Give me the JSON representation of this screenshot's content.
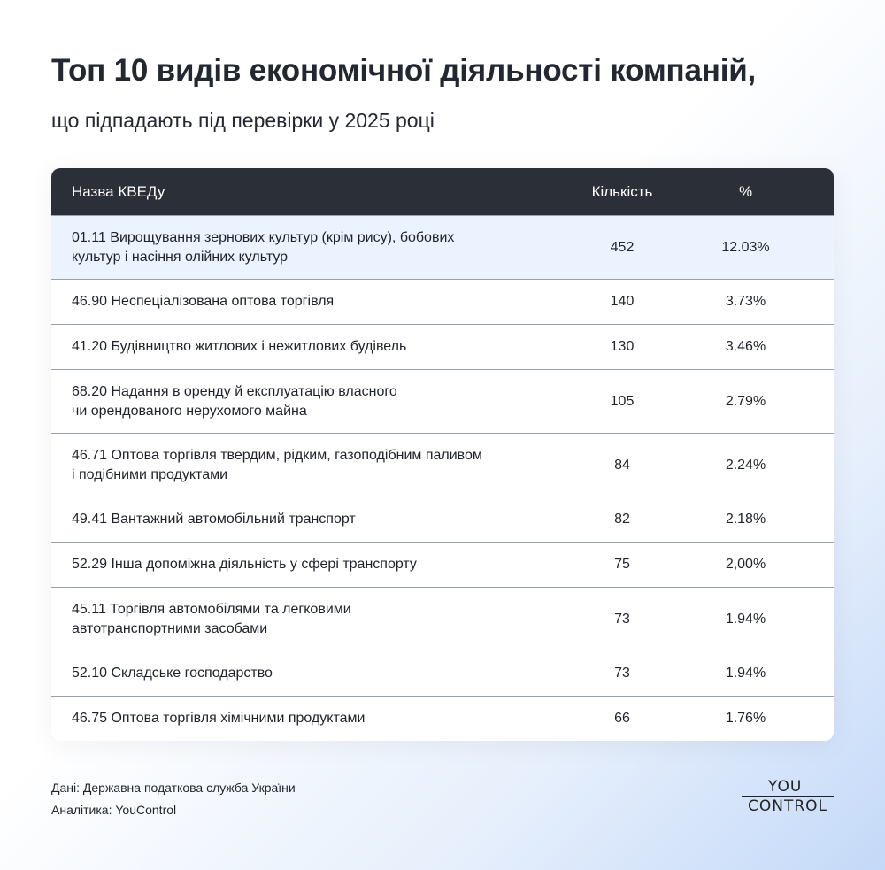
{
  "title": "Топ 10 видів економічної діяльності компаній,",
  "subtitle": "що підпадають під перевірки у 2025 році",
  "table": {
    "headers": [
      "Назва КВЕДу",
      "Кількість",
      "%"
    ],
    "rows": [
      {
        "name": "01.11 Вирощування зернових культур (крім рису), бобових культур і насіння олійних культур",
        "count": "452",
        "pct": "12.03%"
      },
      {
        "name": "46.90 Неспеціалізована оптова торгівля",
        "count": "140",
        "pct": "3.73%"
      },
      {
        "name": "41.20 Будівництво житлових і нежитлових будівель",
        "count": "130",
        "pct": "3.46%"
      },
      {
        "name": "68.20 Надання в оренду й експлуатацію власного чи орендованого нерухомого майна",
        "count": "105",
        "pct": "2.79%"
      },
      {
        "name": "46.71 Оптова торгівля твердим, рідким, газоподібним паливом і подібними продуктами",
        "count": "84",
        "pct": "2.24%"
      },
      {
        "name": "49.41 Вантажний автомобільний транспорт",
        "count": "82",
        "pct": "2.18%"
      },
      {
        "name": "52.29 Інша допоміжна діяльність у сфері транспорту",
        "count": "75",
        "pct": "2,00%"
      },
      {
        "name": "45.11 Торгівля автомобілями та легковими автотранспортними засобами",
        "count": "73",
        "pct": "1.94%"
      },
      {
        "name": "52.10 Складське господарство",
        "count": "73",
        "pct": "1.94%"
      },
      {
        "name": "46.75 Оптова торгівля хімічними продуктами",
        "count": "66",
        "pct": "1.76%"
      }
    ]
  },
  "footer": {
    "source": "Дані: Державна податкова служба України",
    "analytics": "Аналітика: YouControl"
  },
  "logo": {
    "top": "YOU",
    "bottom": "CONTROL"
  },
  "colors": {
    "header_bg": "#2b2f38",
    "highlight_row": "#eaf3fe"
  }
}
